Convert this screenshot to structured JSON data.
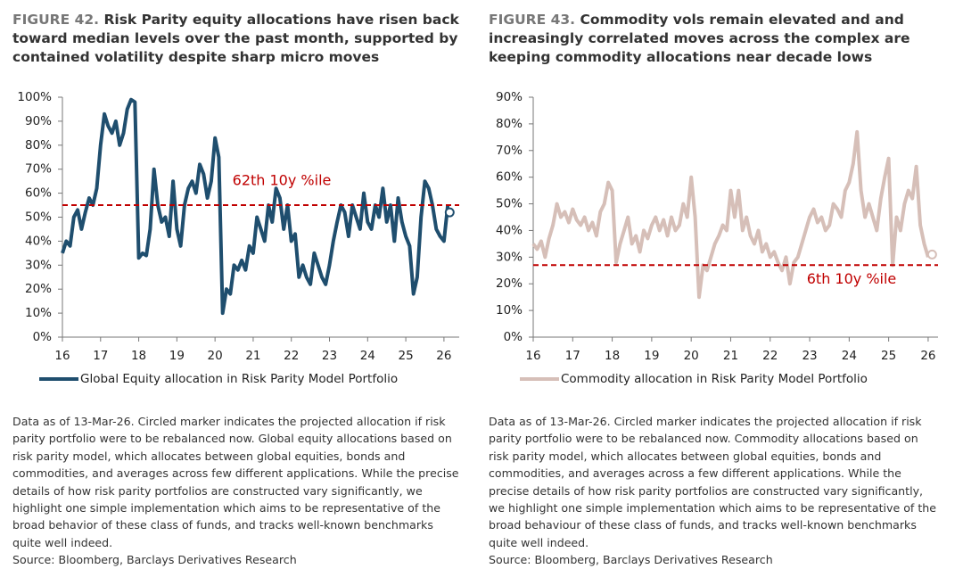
{
  "chart_data": [
    {
      "type": "line",
      "figure": "FIGURE 42.",
      "title": "Risk Parity equity allocations have risen back toward median levels over the past month, supported by contained volatility despite sharp micro moves",
      "x": [
        16.0,
        16.1,
        16.2,
        16.3,
        16.4,
        16.5,
        16.6,
        16.7,
        16.8,
        16.9,
        17.0,
        17.1,
        17.2,
        17.3,
        17.4,
        17.5,
        17.6,
        17.7,
        17.8,
        17.9,
        18.0,
        18.1,
        18.2,
        18.3,
        18.4,
        18.5,
        18.6,
        18.7,
        18.8,
        18.9,
        19.0,
        19.1,
        19.2,
        19.3,
        19.4,
        19.5,
        19.6,
        19.7,
        19.8,
        19.9,
        20.0,
        20.1,
        20.2,
        20.3,
        20.4,
        20.5,
        20.6,
        20.7,
        20.8,
        20.9,
        21.0,
        21.1,
        21.2,
        21.3,
        21.4,
        21.5,
        21.6,
        21.7,
        21.8,
        21.9,
        22.0,
        22.1,
        22.2,
        22.3,
        22.4,
        22.5,
        22.6,
        22.7,
        22.8,
        22.9,
        23.0,
        23.1,
        23.2,
        23.3,
        23.4,
        23.5,
        23.6,
        23.7,
        23.8,
        23.9,
        24.0,
        24.1,
        24.2,
        24.3,
        24.4,
        24.5,
        24.6,
        24.7,
        24.8,
        24.9,
        25.0,
        25.1,
        25.2,
        25.3,
        25.4,
        25.5,
        25.6,
        25.7,
        25.8,
        25.9,
        26.0,
        26.1
      ],
      "series": [
        {
          "name": "Global Equity allocation in Risk Parity Model Portfolio",
          "color": "#1f4e6e",
          "values": [
            35,
            40,
            38,
            50,
            53,
            45,
            52,
            58,
            55,
            62,
            80,
            93,
            88,
            85,
            90,
            80,
            85,
            95,
            99,
            98,
            33,
            35,
            34,
            45,
            70,
            55,
            48,
            50,
            42,
            65,
            45,
            38,
            55,
            62,
            65,
            60,
            72,
            68,
            58,
            65,
            83,
            75,
            10,
            20,
            18,
            30,
            28,
            32,
            28,
            38,
            35,
            50,
            45,
            40,
            55,
            48,
            62,
            58,
            45,
            55,
            40,
            43,
            25,
            30,
            25,
            22,
            35,
            30,
            25,
            22,
            30,
            40,
            48,
            55,
            52,
            42,
            55,
            50,
            45,
            60,
            48,
            45,
            55,
            50,
            62,
            48,
            55,
            40,
            58,
            48,
            42,
            38,
            18,
            25,
            50,
            65,
            62,
            55,
            45,
            42,
            40,
            55
          ]
        }
      ],
      "xlim": [
        16,
        26.4
      ],
      "xticks": [
        16,
        17,
        18,
        19,
        20,
        21,
        22,
        23,
        24,
        25,
        26
      ],
      "ylim": [
        0,
        100
      ],
      "yticks": [
        {
          "value": 0,
          "label": "0%"
        },
        {
          "value": 10,
          "label": "10%"
        },
        {
          "value": 20,
          "label": "20%"
        },
        {
          "value": 30,
          "label": "30%"
        },
        {
          "value": 40,
          "label": "40%"
        },
        {
          "value": 50,
          "label": "50%"
        },
        {
          "value": 60,
          "label": "60%"
        },
        {
          "value": 70,
          "label": "70%"
        },
        {
          "value": 80,
          "label": "80%"
        },
        {
          "value": 90,
          "label": "90%"
        },
        {
          "value": 100,
          "label": "100%"
        }
      ],
      "reference_line": {
        "value": 55,
        "label": "62th 10y %ile",
        "color": "#c00000"
      },
      "projected": {
        "x": 26.15,
        "value": 52
      },
      "note": "Data as of 13-Mar-26. Circled marker indicates the projected allocation if risk parity portfolio were to be rebalanced now. Global equity allocations based on risk parity model, which allocates between global equities, bonds and commodities, and averages across few different applications. While the precise details of how risk parity portfolios are constructed vary significantly, we highlight one simple implementation which aims to be representative of the broad behavior of these class of funds, and tracks well-known benchmarks quite well indeed.",
      "source": "Source: Bloomberg, Barclays Derivatives Research"
    },
    {
      "type": "line",
      "figure": "FIGURE 43.",
      "title": "Commodity vols remain elevated and and increasingly correlated moves across the complex are keeping commodity allocations near decade lows",
      "x": [
        16.0,
        16.1,
        16.2,
        16.3,
        16.4,
        16.5,
        16.6,
        16.7,
        16.8,
        16.9,
        17.0,
        17.1,
        17.2,
        17.3,
        17.4,
        17.5,
        17.6,
        17.7,
        17.8,
        17.9,
        18.0,
        18.1,
        18.2,
        18.3,
        18.4,
        18.5,
        18.6,
        18.7,
        18.8,
        18.9,
        19.0,
        19.1,
        19.2,
        19.3,
        19.4,
        19.5,
        19.6,
        19.7,
        19.8,
        19.9,
        20.0,
        20.1,
        20.2,
        20.3,
        20.4,
        20.5,
        20.6,
        20.7,
        20.8,
        20.9,
        21.0,
        21.1,
        21.2,
        21.3,
        21.4,
        21.5,
        21.6,
        21.7,
        21.8,
        21.9,
        22.0,
        22.1,
        22.2,
        22.3,
        22.4,
        22.5,
        22.6,
        22.7,
        22.8,
        22.9,
        23.0,
        23.1,
        23.2,
        23.3,
        23.4,
        23.5,
        23.6,
        23.7,
        23.8,
        23.9,
        24.0,
        24.1,
        24.2,
        24.3,
        24.4,
        24.5,
        24.6,
        24.7,
        24.8,
        24.9,
        25.0,
        25.1,
        25.2,
        25.3,
        25.4,
        25.5,
        25.6,
        25.7,
        25.8,
        25.9,
        26.0
      ],
      "series": [
        {
          "name": "Commodity allocation in Risk Parity Model Portfolio",
          "color": "#d6bfb8",
          "values": [
            35,
            33,
            36,
            30,
            37,
            42,
            50,
            45,
            47,
            43,
            48,
            44,
            42,
            45,
            40,
            43,
            38,
            47,
            50,
            58,
            55,
            28,
            35,
            40,
            45,
            35,
            38,
            32,
            40,
            37,
            42,
            45,
            40,
            44,
            38,
            45,
            40,
            42,
            50,
            45,
            60,
            45,
            15,
            27,
            25,
            30,
            35,
            38,
            42,
            40,
            55,
            45,
            55,
            40,
            45,
            38,
            35,
            40,
            32,
            35,
            30,
            32,
            28,
            25,
            30,
            20,
            28,
            30,
            35,
            40,
            45,
            48,
            43,
            45,
            40,
            42,
            50,
            48,
            45,
            55,
            58,
            65,
            77,
            55,
            45,
            50,
            45,
            40,
            52,
            60,
            67,
            27,
            45,
            40,
            50,
            55,
            52,
            64,
            42,
            35,
            30
          ]
        }
      ],
      "xlim": [
        16,
        26.25
      ],
      "xticks": [
        16,
        17,
        18,
        19,
        20,
        21,
        22,
        23,
        24,
        25,
        26
      ],
      "ylim": [
        0,
        90
      ],
      "yticks": [
        {
          "value": 0,
          "label": "0%"
        },
        {
          "value": 10,
          "label": "10%"
        },
        {
          "value": 20,
          "label": "20%"
        },
        {
          "value": 30,
          "label": "30%"
        },
        {
          "value": 40,
          "label": "40%"
        },
        {
          "value": 50,
          "label": "50%"
        },
        {
          "value": 60,
          "label": "60%"
        },
        {
          "value": 70,
          "label": "70%"
        },
        {
          "value": 80,
          "label": "80%"
        },
        {
          "value": 90,
          "label": "90%"
        }
      ],
      "reference_line": {
        "value": 27,
        "label": "6th 10y %ile",
        "color": "#c00000"
      },
      "projected": {
        "x": 26.1,
        "value": 31
      },
      "note": "Data as of 13-Mar-26. Circled marker indicates the projected allocation if risk parity portfolio were to be rebalanced now. Commodity allocations based on risk parity model, which allocates between global equities, bonds and commodities, and averages across a few different applications. While the precise details of how risk parity portfolios are constructed vary significantly, we highlight one simple implementation which aims to be representative of the broad behaviour of these class of funds, and tracks well-known benchmarks quite well indeed.",
      "source": "Source: Bloomberg, Barclays Derivatives Research"
    }
  ]
}
